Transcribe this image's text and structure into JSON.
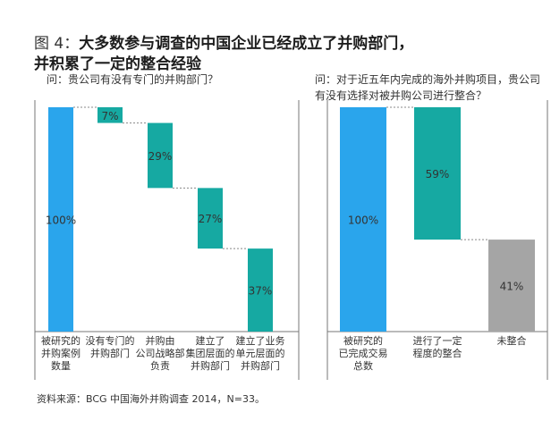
{
  "title": {
    "figure_num": "图 4：",
    "line1": "大多数参与调查的中国企业已经成立了并购部门，",
    "line2": "并积累了一定的整合经验"
  },
  "colors": {
    "blue": "#2aa5ec",
    "teal": "#16a9a2",
    "gray": "#a5a5a5",
    "axis": "#777777"
  },
  "chart_data": [
    {
      "type": "bar",
      "subtype": "waterfall",
      "question": "问：贵公司有没有专门的并购部门？",
      "categories": [
        [
          "被研究的",
          "并购案例",
          "数量"
        ],
        [
          "没有专门的",
          "并购部门"
        ],
        [
          "并购由",
          "公司战略部",
          "负责"
        ],
        [
          "建立了",
          "集团层面的",
          "并购部门"
        ],
        [
          "建立了业务",
          "单元层面的",
          "并购部门"
        ]
      ],
      "values": [
        100,
        7,
        29,
        27,
        37
      ],
      "labels": [
        "100%",
        "7%",
        "29%",
        "27%",
        "37%"
      ],
      "bar_colors": [
        "blue",
        "teal",
        "teal",
        "teal",
        "teal"
      ],
      "ylim": [
        0,
        100
      ]
    },
    {
      "type": "bar",
      "subtype": "waterfall",
      "question_line1": "问：对于近五年内完成的海外并购项目，贵公司",
      "question_line2": "有没有选择对被并购公司进行整合？",
      "categories": [
        [
          "被研究的",
          "已完成交易",
          "总数"
        ],
        [
          "进行了一定",
          "程度的整合"
        ],
        [
          "未整合"
        ]
      ],
      "values": [
        100,
        59,
        41
      ],
      "labels": [
        "100%",
        "59%",
        "41%"
      ],
      "bar_colors": [
        "blue",
        "teal",
        "gray"
      ],
      "ylim": [
        0,
        100
      ]
    }
  ],
  "source": "资料来源：BCG 中国海外并购调查 2014，N=33。"
}
